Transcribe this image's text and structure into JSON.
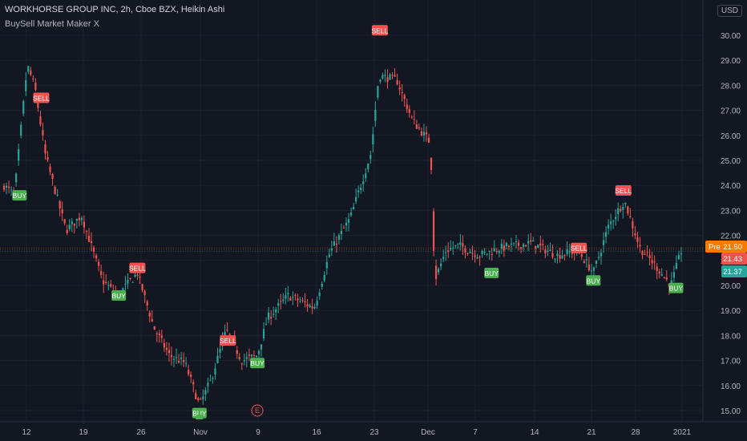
{
  "header": {
    "title": "WORKHORSE GROUP INC, 2h, Cboe BZX, Heikin Ashi",
    "indicator": "BuySell Market Maker X",
    "currency_button": "USD"
  },
  "colors": {
    "background": "#131722",
    "up": "#26a69a",
    "down": "#ef5350",
    "buy_label": "#4caf50",
    "sell_label": "#ef5350",
    "grid": "#1e222d",
    "axis_text": "#b2b5be",
    "pre_label": "#f57c00"
  },
  "chart_data": {
    "type": "candlestick",
    "ylim": [
      14.7,
      30.6
    ],
    "y_ticks": [
      "15.00",
      "16.00",
      "17.00",
      "18.00",
      "19.00",
      "20.00",
      "21.00",
      "22.00",
      "23.00",
      "24.00",
      "25.00",
      "26.00",
      "27.00",
      "28.00",
      "29.00",
      "30.00"
    ],
    "x_ticks": [
      "12",
      "19",
      "26",
      "Nov",
      "9",
      "16",
      "23",
      "Dec",
      "7",
      "14",
      "21",
      "28",
      "2021"
    ],
    "price_labels": [
      {
        "prefix": "Pre",
        "text": "21.50",
        "value": 21.5,
        "color": "#f57c00"
      },
      {
        "prefix": "",
        "text": "21.43",
        "value": 21.43,
        "color": "#ef5350"
      },
      {
        "prefix": "",
        "text": "21.37",
        "value": 21.37,
        "color": "#26a69a"
      }
    ],
    "signals": [
      {
        "type": "BUY",
        "t": 0.03,
        "price": 23.6
      },
      {
        "type": "SELL",
        "t": 0.072,
        "price": 27.5
      },
      {
        "type": "BUY",
        "t": 0.222,
        "price": 19.6
      },
      {
        "type": "SELL",
        "t": 0.258,
        "price": 20.7
      },
      {
        "type": "BUY",
        "t": 0.378,
        "price": 14.9
      },
      {
        "type": "SELL",
        "t": 0.433,
        "price": 17.8
      },
      {
        "type": "BUY",
        "t": 0.49,
        "price": 16.9
      },
      {
        "type": "SELL",
        "t": 0.727,
        "price": 30.2
      },
      {
        "type": "BUY",
        "t": 0.943,
        "price": 20.5
      },
      {
        "type": "SELL",
        "t": 1.112,
        "price": 21.5
      },
      {
        "type": "BUY",
        "t": 1.14,
        "price": 20.2
      },
      {
        "type": "SELL",
        "t": 1.198,
        "price": 23.8
      },
      {
        "type": "BUY",
        "t": 1.3,
        "price": 19.9
      }
    ],
    "earnings_marker": {
      "label": "E",
      "t": 0.49
    },
    "price_path": [
      [
        0,
        24.0
      ],
      [
        0.02,
        23.6
      ],
      [
        0.045,
        28.8
      ],
      [
        0.06,
        27.9
      ],
      [
        0.08,
        25.2
      ],
      [
        0.12,
        22.2
      ],
      [
        0.15,
        22.8
      ],
      [
        0.19,
        20.2
      ],
      [
        0.22,
        19.6
      ],
      [
        0.258,
        20.5
      ],
      [
        0.29,
        18.3
      ],
      [
        0.32,
        17.2
      ],
      [
        0.35,
        16.9
      ],
      [
        0.378,
        15.2
      ],
      [
        0.4,
        16.2
      ],
      [
        0.43,
        18.2
      ],
      [
        0.46,
        17.0
      ],
      [
        0.49,
        17.2
      ],
      [
        0.51,
        18.7
      ],
      [
        0.55,
        19.6
      ],
      [
        0.6,
        19.1
      ],
      [
        0.63,
        21.3
      ],
      [
        0.67,
        22.7
      ],
      [
        0.71,
        25.3
      ],
      [
        0.725,
        28.4
      ],
      [
        0.76,
        28.2
      ],
      [
        0.79,
        26.6
      ],
      [
        0.825,
        25.7
      ],
      [
        0.833,
        20.2
      ],
      [
        0.855,
        21.4
      ],
      [
        0.88,
        21.6
      ],
      [
        0.92,
        21.2
      ],
      [
        0.96,
        21.5
      ],
      [
        1.02,
        21.7
      ],
      [
        1.07,
        21.2
      ],
      [
        1.11,
        21.4
      ],
      [
        1.14,
        20.5
      ],
      [
        1.17,
        22.4
      ],
      [
        1.2,
        23.4
      ],
      [
        1.23,
        21.5
      ],
      [
        1.26,
        20.8
      ],
      [
        1.29,
        20.0
      ],
      [
        1.31,
        21.37
      ]
    ]
  }
}
